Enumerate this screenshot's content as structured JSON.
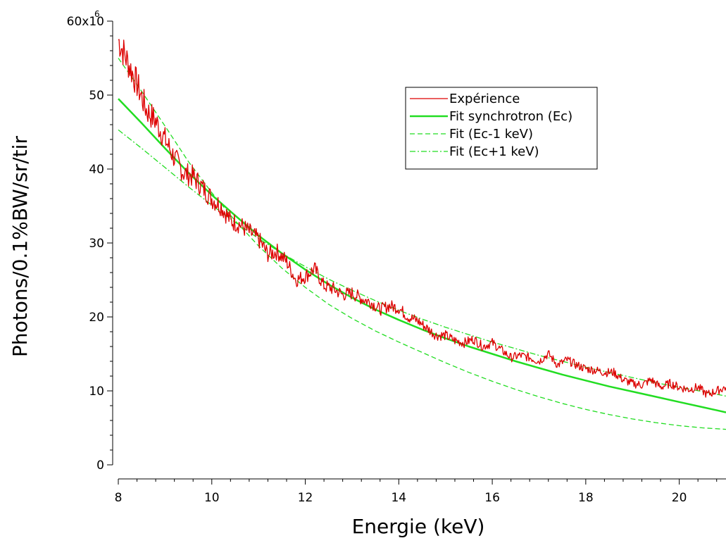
{
  "chart_data": {
    "type": "line",
    "xlabel": "Energie (keV)",
    "ylabel": "Photons/0.1%BW/sr/tir",
    "xlim": [
      8,
      21
    ],
    "ylim": [
      0,
      60
    ],
    "y_scale_note": "x10^6",
    "x_ticks": [
      8,
      10,
      12,
      14,
      16,
      18,
      20
    ],
    "y_ticks": [
      0,
      10,
      20,
      30,
      40,
      50,
      60
    ],
    "y_tick_labels": [
      "0",
      "10",
      "20",
      "30",
      "40",
      "50",
      "60x10"
    ],
    "y_exponent_label": "6",
    "legend": {
      "position": "top-right",
      "entries": [
        {
          "label": "Expérience",
          "color": "#dd0000",
          "style": "solid"
        },
        {
          "label": "Fit synchrotron (Ec)",
          "color": "#22dd22",
          "style": "solid-thick"
        },
        {
          "label": "Fit (Ec-1 keV)",
          "color": "#22dd22",
          "style": "dashed"
        },
        {
          "label": "Fit (Ec+1 keV)",
          "color": "#22dd22",
          "style": "dashdot"
        }
      ]
    },
    "series": [
      {
        "name": "Expérience",
        "color": "#dd0000",
        "style": "solid",
        "x": [
          8.0,
          8.2,
          8.4,
          8.6,
          8.8,
          9.0,
          9.2,
          9.4,
          9.6,
          9.8,
          10.0,
          10.2,
          10.4,
          10.6,
          10.8,
          11.0,
          11.2,
          11.4,
          11.6,
          11.8,
          12.0,
          12.2,
          12.4,
          12.6,
          12.8,
          13.0,
          13.2,
          13.4,
          13.6,
          13.8,
          14.0,
          14.2,
          14.4,
          14.6,
          14.8,
          15.0,
          15.2,
          15.4,
          15.6,
          15.8,
          16.0,
          16.2,
          16.4,
          16.6,
          16.8,
          17.0,
          17.2,
          17.4,
          17.6,
          17.8,
          18.0,
          18.2,
          18.4,
          18.6,
          18.8,
          19.0,
          19.2,
          19.4,
          19.6,
          19.8,
          20.0,
          20.2,
          20.4,
          20.6,
          20.8,
          21.0
        ],
        "values": [
          57.5,
          54.5,
          51.5,
          48.0,
          46.5,
          44.0,
          41.5,
          39.5,
          39.0,
          37.5,
          36.0,
          35.0,
          33.0,
          32.5,
          31.5,
          30.5,
          28.5,
          28.8,
          27.5,
          25.0,
          25.5,
          26.5,
          24.2,
          23.8,
          23.0,
          23.2,
          22.5,
          22.0,
          21.0,
          21.5,
          21.2,
          20.0,
          19.5,
          18.5,
          17.5,
          17.5,
          16.8,
          16.5,
          17.0,
          16.0,
          16.5,
          15.5,
          14.5,
          14.8,
          14.5,
          14.0,
          15.0,
          13.5,
          14.2,
          13.5,
          13.0,
          12.8,
          12.5,
          12.5,
          11.5,
          11.0,
          10.8,
          11.5,
          10.5,
          11.0,
          10.5,
          10.2,
          10.5,
          9.5,
          10.0,
          10.5
        ]
      },
      {
        "name": "Fit synchrotron (Ec)",
        "color": "#22dd22",
        "style": "solid-thick",
        "x": [
          8.0,
          8.5,
          9.0,
          9.5,
          10.0,
          10.5,
          11.0,
          11.5,
          12.0,
          12.5,
          13.0,
          13.5,
          14.0,
          14.5,
          15.0,
          15.5,
          16.0,
          16.5,
          17.0,
          17.5,
          18.0,
          18.5,
          19.0,
          19.5,
          20.0,
          20.5,
          21.0
        ],
        "values": [
          49.5,
          46.2,
          42.8,
          39.5,
          36.5,
          33.7,
          31.0,
          28.6,
          26.4,
          24.4,
          22.6,
          21.0,
          19.6,
          18.3,
          17.1,
          16.0,
          15.0,
          14.0,
          13.1,
          12.2,
          11.4,
          10.6,
          9.9,
          9.2,
          8.5,
          7.8,
          7.1
        ]
      },
      {
        "name": "Fit (Ec-1 keV)",
        "color": "#22dd22",
        "style": "dashed",
        "x": [
          8.0,
          8.5,
          9.0,
          9.5,
          10.0,
          10.5,
          11.0,
          11.5,
          12.0,
          12.5,
          13.0,
          13.5,
          14.0,
          14.5,
          15.0,
          15.5,
          16.0,
          16.5,
          17.0,
          17.5,
          18.0,
          18.5,
          19.0,
          19.5,
          20.0,
          20.5,
          21.0
        ],
        "values": [
          55.0,
          50.5,
          45.8,
          41.0,
          36.8,
          33.0,
          29.6,
          26.6,
          24.0,
          21.7,
          19.8,
          18.1,
          16.6,
          15.2,
          13.8,
          12.5,
          11.3,
          10.2,
          9.2,
          8.3,
          7.5,
          6.8,
          6.2,
          5.7,
          5.3,
          5.0,
          4.8
        ]
      },
      {
        "name": "Fit (Ec+1 keV)",
        "color": "#22dd22",
        "style": "dashdot",
        "x": [
          8.0,
          8.5,
          9.0,
          9.5,
          10.0,
          10.5,
          11.0,
          11.5,
          12.0,
          12.5,
          13.0,
          13.5,
          14.0,
          14.5,
          15.0,
          15.5,
          16.0,
          16.5,
          17.0,
          17.5,
          18.0,
          18.5,
          19.0,
          19.5,
          20.0,
          20.5,
          21.0
        ],
        "values": [
          45.3,
          42.8,
          40.2,
          37.6,
          35.1,
          32.8,
          30.6,
          28.6,
          26.8,
          25.1,
          23.6,
          22.2,
          20.9,
          19.7,
          18.6,
          17.6,
          16.6,
          15.7,
          14.8,
          14.0,
          13.2,
          12.5,
          11.8,
          11.1,
          10.5,
          9.9,
          9.3
        ]
      }
    ]
  }
}
